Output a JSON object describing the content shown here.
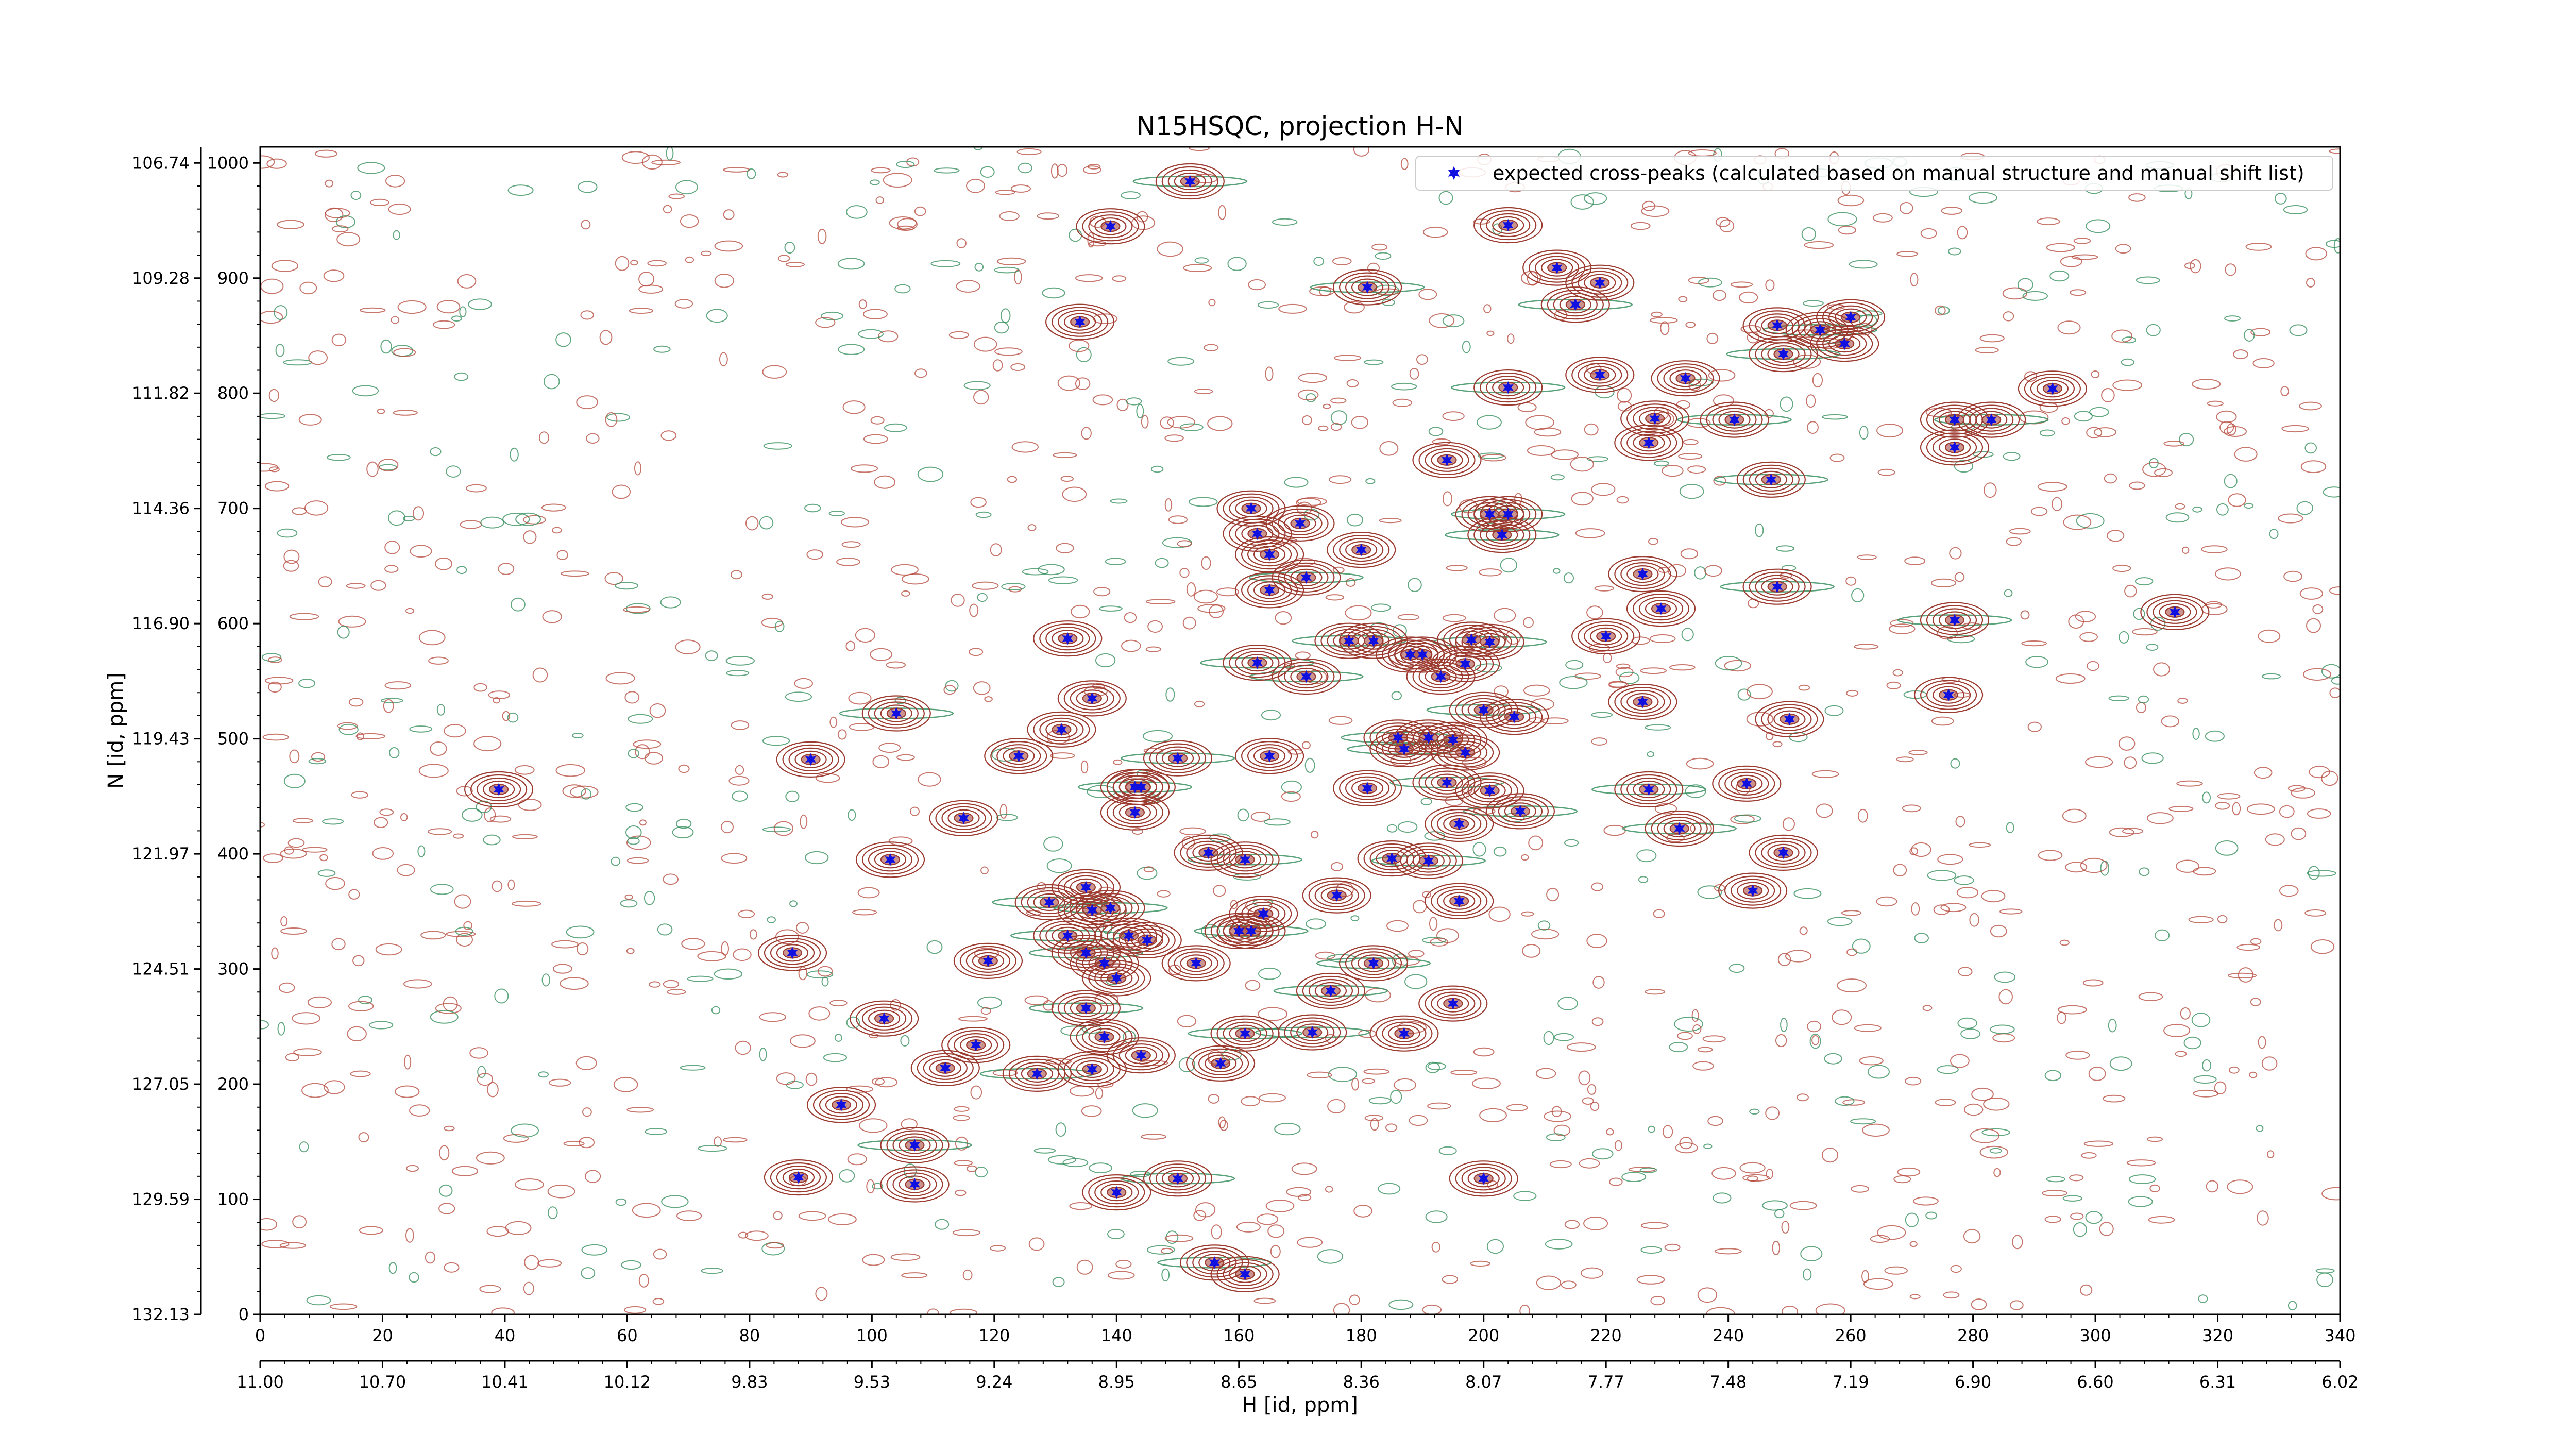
{
  "chart_data": {
    "type": "scatter",
    "title": "N15HSQC, projection H-N",
    "xlabel": "H [id, ppm]",
    "ylabel": "N [id, ppm]",
    "xlim": [
      0,
      340
    ],
    "ylim": [
      0,
      1014
    ],
    "x_ticks": [
      0,
      20,
      40,
      60,
      80,
      100,
      120,
      140,
      160,
      180,
      200,
      220,
      240,
      260,
      280,
      300,
      320,
      340
    ],
    "y_ticks": [
      0,
      100,
      200,
      300,
      400,
      500,
      600,
      700,
      800,
      900,
      1000
    ],
    "secondary_x_ticks": [
      "11.00",
      "10.70",
      "10.41",
      "10.12",
      "9.83",
      "9.53",
      "9.24",
      "8.95",
      "8.65",
      "8.36",
      "8.07",
      "7.77",
      "7.48",
      "7.19",
      "6.90",
      "6.60",
      "6.31",
      "6.02"
    ],
    "secondary_y_ticks": [
      "132.13",
      "129.59",
      "127.05",
      "124.51",
      "121.97",
      "119.43",
      "116.90",
      "114.36",
      "111.82",
      "109.28",
      "106.74"
    ],
    "legend_position": "top-right",
    "grid": false,
    "series": [
      {
        "name": "expected cross-peaks (calculated based on manual structure and manual shift list)",
        "marker": "*",
        "color": "#1010e0",
        "points": [
          [
            152,
            984
          ],
          [
            139,
            945
          ],
          [
            204,
            946
          ],
          [
            181,
            892
          ],
          [
            212,
            909
          ],
          [
            219,
            896
          ],
          [
            215,
            877
          ],
          [
            134,
            862
          ],
          [
            248,
            859
          ],
          [
            255,
            855
          ],
          [
            260,
            866
          ],
          [
            259,
            843
          ],
          [
            249,
            834
          ],
          [
            233,
            813
          ],
          [
            219,
            816
          ],
          [
            204,
            805
          ],
          [
            293,
            804
          ],
          [
            228,
            778
          ],
          [
            241,
            777
          ],
          [
            227,
            757
          ],
          [
            277,
            777
          ],
          [
            283,
            777
          ],
          [
            277,
            753
          ],
          [
            194,
            742
          ],
          [
            247,
            725
          ],
          [
            162,
            700
          ],
          [
            201,
            695
          ],
          [
            204,
            695
          ],
          [
            170,
            687
          ],
          [
            163,
            678
          ],
          [
            203,
            677
          ],
          [
            165,
            660
          ],
          [
            180,
            664
          ],
          [
            171,
            640
          ],
          [
            226,
            643
          ],
          [
            165,
            629
          ],
          [
            248,
            632
          ],
          [
            229,
            613
          ],
          [
            313,
            610
          ],
          [
            277,
            603
          ],
          [
            220,
            589
          ],
          [
            132,
            587
          ],
          [
            178,
            585
          ],
          [
            182,
            585
          ],
          [
            198,
            586
          ],
          [
            201,
            584
          ],
          [
            190,
            573
          ],
          [
            188,
            573
          ],
          [
            163,
            566
          ],
          [
            197,
            565
          ],
          [
            193,
            554
          ],
          [
            171,
            554
          ],
          [
            136,
            535
          ],
          [
            226,
            532
          ],
          [
            200,
            525
          ],
          [
            205,
            519
          ],
          [
            276,
            538
          ],
          [
            104,
            522
          ],
          [
            131,
            508
          ],
          [
            250,
            517
          ],
          [
            186,
            501
          ],
          [
            191,
            501
          ],
          [
            195,
            499
          ],
          [
            187,
            491
          ],
          [
            197,
            488
          ],
          [
            124,
            485
          ],
          [
            150,
            483
          ],
          [
            165,
            485
          ],
          [
            90,
            482
          ],
          [
            194,
            462
          ],
          [
            243,
            461
          ],
          [
            39,
            456
          ],
          [
            143,
            458
          ],
          [
            144,
            458
          ],
          [
            181,
            457
          ],
          [
            227,
            456
          ],
          [
            201,
            455
          ],
          [
            143,
            436
          ],
          [
            206,
            437
          ],
          [
            196,
            426
          ],
          [
            115,
            431
          ],
          [
            232,
            422
          ],
          [
            103,
            395
          ],
          [
            185,
            396
          ],
          [
            191,
            394
          ],
          [
            249,
            401
          ],
          [
            155,
            401
          ],
          [
            161,
            395
          ],
          [
            176,
            364
          ],
          [
            135,
            371
          ],
          [
            129,
            358
          ],
          [
            244,
            368
          ],
          [
            196,
            359
          ],
          [
            139,
            353
          ],
          [
            136,
            351
          ],
          [
            164,
            348
          ],
          [
            132,
            329
          ],
          [
            142,
            329
          ],
          [
            145,
            325
          ],
          [
            135,
            314
          ],
          [
            138,
            305
          ],
          [
            160,
            333
          ],
          [
            162,
            333
          ],
          [
            87,
            314
          ],
          [
            119,
            307
          ],
          [
            182,
            305
          ],
          [
            140,
            292
          ],
          [
            153,
            305
          ],
          [
            175,
            281
          ],
          [
            195,
            270
          ],
          [
            102,
            257
          ],
          [
            135,
            266
          ],
          [
            138,
            241
          ],
          [
            117,
            234
          ],
          [
            172,
            245
          ],
          [
            187,
            244
          ],
          [
            144,
            225
          ],
          [
            161,
            244
          ],
          [
            157,
            218
          ],
          [
            112,
            214
          ],
          [
            127,
            209
          ],
          [
            136,
            213
          ],
          [
            95,
            182
          ],
          [
            107,
            147
          ],
          [
            107,
            113
          ],
          [
            88,
            119
          ],
          [
            150,
            118
          ],
          [
            140,
            106
          ],
          [
            200,
            118
          ],
          [
            156,
            45
          ],
          [
            161,
            35
          ]
        ]
      }
    ]
  }
}
